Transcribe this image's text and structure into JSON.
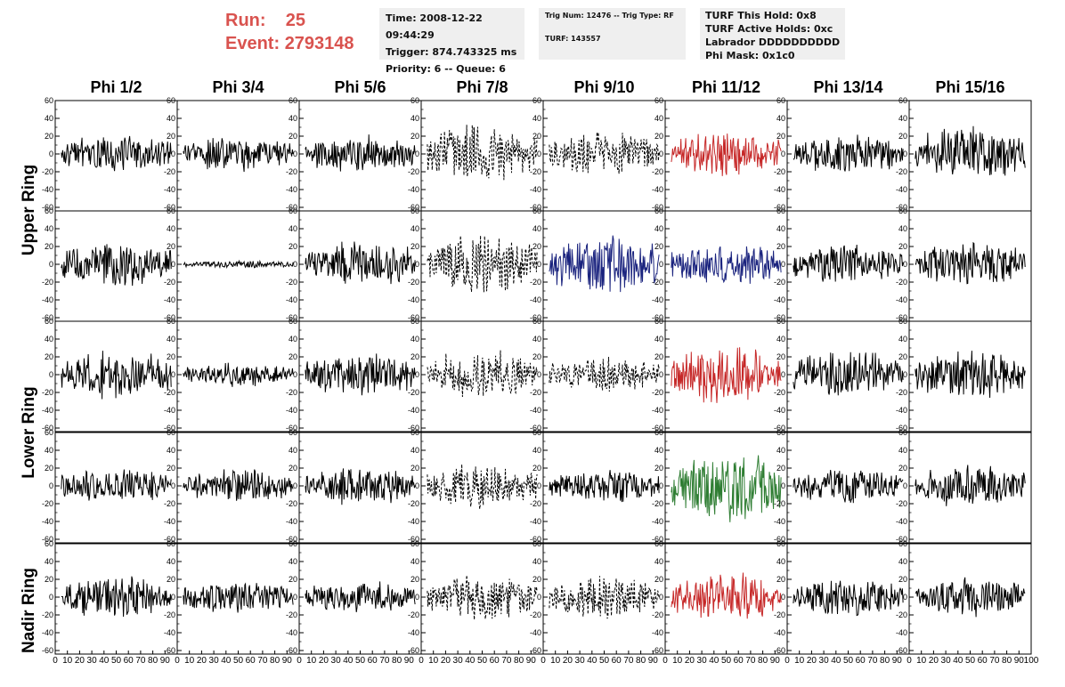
{
  "header": {
    "run_label": "Run:",
    "run_value": "25",
    "event_label": "Event:",
    "event_value": "2793148",
    "time_line": "Time: 2008-12-22 09:44:29",
    "trigger_line": "Trigger: 874.743325 ms",
    "priority_line": "Priority: 6 -- Queue: 6",
    "trig_line": "Trig Num: 12476 -- Trig Type: RF",
    "turf_line": "TURF: 143557",
    "turf_hold_line": "TURF This Hold: 0x8",
    "turf_active_line": "TURF Active Holds: 0xc",
    "labrador_line": "Labrador DDDDDDDDDD",
    "phimask_line": "Phi Mask: 0x1c0"
  },
  "chart_data": {
    "type": "line",
    "columns": [
      "Phi 1/2",
      "Phi 3/4",
      "Phi 5/6",
      "Phi 7/8",
      "Phi 9/10",
      "Phi 11/12",
      "Phi 13/14",
      "Phi 15/16"
    ],
    "ring_labels": [
      "Upper Ring",
      "Lower Ring",
      "Nadir Ring"
    ],
    "ylim": [
      -60,
      60
    ],
    "xlim": [
      0,
      100
    ],
    "yticks": [
      -60,
      -40,
      -20,
      0,
      20,
      40,
      60
    ],
    "xticks": [
      0,
      10,
      20,
      30,
      40,
      50,
      60,
      70,
      80,
      90,
      100
    ],
    "panels": [
      {
        "row": 0,
        "col": 0,
        "style": "solid",
        "color": "#000000",
        "amplitude": 16
      },
      {
        "row": 0,
        "col": 1,
        "style": "solid",
        "color": "#000000",
        "amplitude": 14
      },
      {
        "row": 0,
        "col": 2,
        "style": "solid",
        "color": "#000000",
        "amplitude": 15
      },
      {
        "row": 0,
        "col": 3,
        "style": "dashed",
        "color": "#000000",
        "amplitude": 24
      },
      {
        "row": 0,
        "col": 4,
        "style": "dashed",
        "color": "#000000",
        "amplitude": 18
      },
      {
        "row": 0,
        "col": 5,
        "style": "solid",
        "color": "#c62828",
        "amplitude": 18
      },
      {
        "row": 0,
        "col": 6,
        "style": "solid",
        "color": "#000000",
        "amplitude": 16
      },
      {
        "row": 0,
        "col": 7,
        "style": "solid",
        "color": "#000000",
        "amplitude": 22
      },
      {
        "row": 1,
        "col": 0,
        "style": "solid",
        "color": "#000000",
        "amplitude": 18
      },
      {
        "row": 1,
        "col": 1,
        "style": "solid",
        "color": "#000000",
        "amplitude": 3
      },
      {
        "row": 1,
        "col": 2,
        "style": "solid",
        "color": "#000000",
        "amplitude": 20
      },
      {
        "row": 1,
        "col": 3,
        "style": "dashed",
        "color": "#000000",
        "amplitude": 26
      },
      {
        "row": 1,
        "col": 4,
        "style": "solid",
        "color": "#1a237e",
        "amplitude": 24
      },
      {
        "row": 1,
        "col": 5,
        "style": "solid",
        "color": "#1a237e",
        "amplitude": 18
      },
      {
        "row": 1,
        "col": 6,
        "style": "solid",
        "color": "#000000",
        "amplitude": 16
      },
      {
        "row": 1,
        "col": 7,
        "style": "solid",
        "color": "#000000",
        "amplitude": 18
      },
      {
        "row": 2,
        "col": 0,
        "style": "solid",
        "color": "#000000",
        "amplitude": 20
      },
      {
        "row": 2,
        "col": 1,
        "style": "solid",
        "color": "#000000",
        "amplitude": 10
      },
      {
        "row": 2,
        "col": 2,
        "style": "solid",
        "color": "#000000",
        "amplitude": 18
      },
      {
        "row": 2,
        "col": 3,
        "style": "dashed",
        "color": "#000000",
        "amplitude": 20
      },
      {
        "row": 2,
        "col": 4,
        "style": "dashed",
        "color": "#000000",
        "amplitude": 14
      },
      {
        "row": 2,
        "col": 5,
        "style": "solid",
        "color": "#c62828",
        "amplitude": 24
      },
      {
        "row": 2,
        "col": 6,
        "style": "solid",
        "color": "#000000",
        "amplitude": 20
      },
      {
        "row": 2,
        "col": 7,
        "style": "solid",
        "color": "#000000",
        "amplitude": 20
      },
      {
        "row": 3,
        "col": 0,
        "style": "solid",
        "color": "#000000",
        "amplitude": 14
      },
      {
        "row": 3,
        "col": 1,
        "style": "solid",
        "color": "#000000",
        "amplitude": 13
      },
      {
        "row": 3,
        "col": 2,
        "style": "solid",
        "color": "#000000",
        "amplitude": 16
      },
      {
        "row": 3,
        "col": 3,
        "style": "dashed",
        "color": "#000000",
        "amplitude": 18
      },
      {
        "row": 3,
        "col": 4,
        "style": "solid",
        "color": "#000000",
        "amplitude": 14
      },
      {
        "row": 3,
        "col": 5,
        "style": "solid",
        "color": "#2e7d32",
        "amplitude": 30
      },
      {
        "row": 3,
        "col": 6,
        "style": "solid",
        "color": "#000000",
        "amplitude": 14
      },
      {
        "row": 3,
        "col": 7,
        "style": "solid",
        "color": "#000000",
        "amplitude": 18
      },
      {
        "row": 4,
        "col": 0,
        "style": "solid",
        "color": "#000000",
        "amplitude": 17
      },
      {
        "row": 4,
        "col": 1,
        "style": "solid",
        "color": "#000000",
        "amplitude": 13
      },
      {
        "row": 4,
        "col": 2,
        "style": "solid",
        "color": "#000000",
        "amplitude": 14
      },
      {
        "row": 4,
        "col": 3,
        "style": "dashed",
        "color": "#000000",
        "amplitude": 18
      },
      {
        "row": 4,
        "col": 4,
        "style": "dashed",
        "color": "#000000",
        "amplitude": 18
      },
      {
        "row": 4,
        "col": 5,
        "style": "solid",
        "color": "#c62828",
        "amplitude": 20
      },
      {
        "row": 4,
        "col": 6,
        "style": "solid",
        "color": "#000000",
        "amplitude": 16
      },
      {
        "row": 4,
        "col": 7,
        "style": "solid",
        "color": "#000000",
        "amplitude": 16
      }
    ]
  }
}
